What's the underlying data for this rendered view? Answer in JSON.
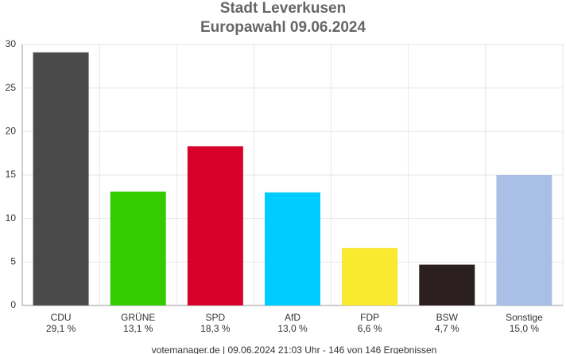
{
  "chart_data": {
    "type": "bar",
    "title": "Stadt Leverkusen",
    "subtitle": "Europawahl 09.06.2024",
    "categories": [
      "CDU",
      "GRÜNE",
      "SPD",
      "AfD",
      "FDP",
      "BSW",
      "Sonstige"
    ],
    "values": [
      29.1,
      13.1,
      18.3,
      13.0,
      6.6,
      4.7,
      15.0
    ],
    "value_labels": [
      "29,1 %",
      "13,1 %",
      "18,3 %",
      "13,0 %",
      "6,6 %",
      "4,7 %",
      "15,0 %"
    ],
    "colors": [
      "#4a4a4a",
      "#33cc00",
      "#d70029",
      "#00ccff",
      "#f9e92f",
      "#2b1f1f",
      "#aabfe6"
    ],
    "ylim": [
      0,
      30
    ],
    "yticks": [
      0,
      5,
      10,
      15,
      20,
      25,
      30
    ],
    "grid": true,
    "source": "votemanager.de | 09.06.2024 21:03 Uhr - 146 von 146 Ergebnissen"
  }
}
